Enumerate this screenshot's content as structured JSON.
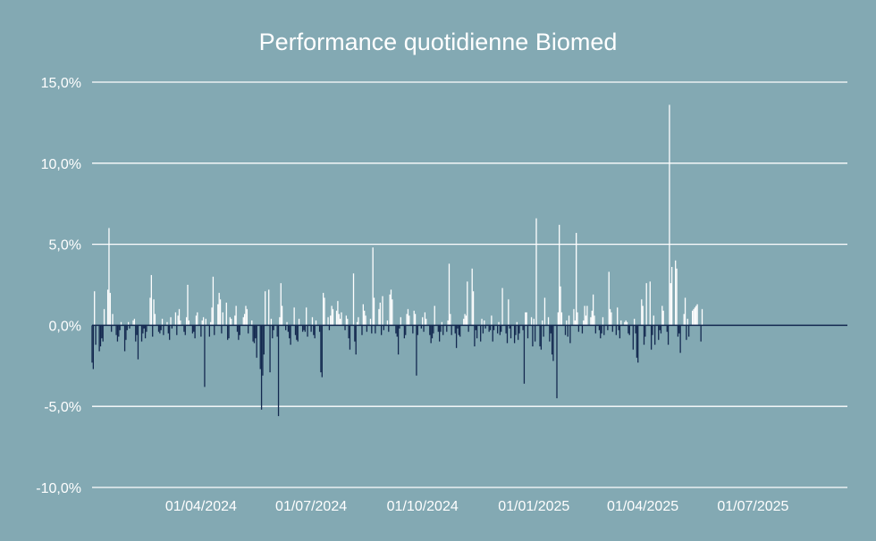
{
  "background_color": "#83a9b3",
  "colors": {
    "positive": "#ffffff",
    "negative": "#13284f",
    "grid": "#ffffff",
    "text": "#ffffff"
  },
  "chart_data": {
    "type": "bar",
    "title": "Performance quotidienne Biomed",
    "xlabel": "",
    "ylabel": "",
    "ylim": [
      -10,
      15
    ],
    "y_ticks": [
      15,
      10,
      5,
      0,
      -5,
      -10
    ],
    "y_tick_labels": [
      "15,0%",
      "10,0%",
      "5,0%",
      "0,0%",
      "-5,0%",
      "-10,0%"
    ],
    "x_range": [
      "2024-01-02",
      "2025-09-17"
    ],
    "x_ticks": [
      "2024-04-01",
      "2024-07-01",
      "2024-10-01",
      "2025-01-01",
      "2025-04-01",
      "2025-07-01"
    ],
    "x_tick_labels": [
      "01/04/2024",
      "01/07/2024",
      "01/10/2024",
      "01/01/2025",
      "01/04/2025",
      "01/07/2025"
    ],
    "grid": true,
    "legend": "none",
    "series": [
      {
        "start_date": "2024-01-02",
        "frequency": "trading days",
        "values": [
          -2.3,
          -2.7,
          2.1,
          -1.2,
          -1.6,
          -1.3,
          -0.8,
          -1.0,
          1.0,
          2.2,
          6.0,
          2.0,
          -0.4,
          0.7,
          -0.6,
          -1.0,
          -0.7,
          -0.3,
          0.2,
          -1.6,
          -0.9,
          -0.3,
          0.2,
          -0.2,
          0.3,
          0.4,
          -1.0,
          -0.6,
          -2.1,
          -1.0,
          -0.5,
          -0.2,
          -0.8,
          -0.4,
          1.7,
          3.1,
          -0.7,
          1.6,
          0.7,
          -0.4,
          -0.5,
          -0.3,
          0.4,
          -0.6,
          0.2,
          -0.5,
          -0.9,
          0.5,
          -0.2,
          0.8,
          -0.6,
          0.6,
          1.0,
          0.3,
          -0.4,
          -0.6,
          0.5,
          2.5,
          0.3,
          -0.5,
          -0.4,
          -0.8,
          0.6,
          0.8,
          -0.7,
          0.3,
          0.5,
          -3.8,
          0.4,
          -0.7,
          0.2,
          1.1,
          3.0,
          -0.6,
          1.3,
          2.0,
          1.6,
          -0.5,
          0.8,
          1.4,
          -0.9,
          -0.8,
          0.5,
          0.4,
          0.6,
          1.2,
          -0.4,
          -0.9,
          -0.6,
          0.5,
          0.7,
          1.2,
          1.0,
          -0.5,
          0.3,
          -1.0,
          -1.1,
          -0.8,
          -2.0,
          -2.7,
          -5.2,
          -3.1,
          -1.8,
          2.1,
          2.2,
          -2.9,
          0.4,
          -0.8,
          -0.3,
          -0.7,
          -5.6,
          0.5,
          2.6,
          1.2,
          -0.3,
          0.2,
          -0.4,
          -0.8,
          -1.2,
          1.1,
          -0.6,
          -0.9,
          -1.0,
          0.4,
          -0.4,
          -0.3,
          -0.4,
          1.1,
          -0.7,
          -0.4,
          0.5,
          -0.6,
          -0.8,
          0.3,
          -0.4,
          -2.9,
          -3.2,
          2.0,
          1.7,
          0.5,
          -0.3,
          0.6,
          1.2,
          1.0,
          0.9,
          1.5,
          0.7,
          0.4,
          0.8,
          -0.3,
          0.6,
          0.4,
          -0.8,
          -1.5,
          3.2,
          -1.0,
          -1.8,
          0.2,
          0.5,
          -0.6,
          1.3,
          0.9,
          0.6,
          -0.4,
          0.4,
          -0.5,
          4.8,
          1.7,
          -0.5,
          1.0,
          1.4,
          -0.6,
          1.8,
          -0.3,
          0.3,
          -0.4,
          1.9,
          2.2,
          1.6,
          -0.5,
          -0.7,
          -1.8,
          -0.2,
          0.5,
          -0.8,
          -0.6,
          0.7,
          1.0,
          0.6,
          -0.5,
          0.9,
          0.7,
          -3.1,
          -0.6,
          -0.2,
          0.5,
          -0.4,
          0.8,
          0.4,
          -0.6,
          -1.1,
          -0.8,
          -0.5,
          1.2,
          -0.4,
          -1.0,
          -0.4,
          0.2,
          -0.6,
          -0.4,
          0.3,
          3.8,
          0.7,
          -0.6,
          -0.5,
          -1.4,
          -0.2,
          -0.6,
          -0.7,
          0.4,
          0.7,
          0.6,
          2.7,
          -0.4,
          3.5,
          2.1,
          -1.3,
          -0.3,
          -0.8,
          -1.0,
          0.4,
          -0.5,
          0.3,
          -0.2,
          -0.4,
          -0.3,
          0.6,
          -1.0,
          -0.3,
          -0.5,
          0.2,
          -0.6,
          -0.4,
          2.3,
          -0.5,
          -1.1,
          1.6,
          -0.2,
          -0.8,
          -1.1,
          -0.6,
          0.2,
          -0.9,
          -0.5,
          -0.3,
          -3.6,
          0.8,
          0.8,
          -0.8,
          0.5,
          -1.3,
          0.4,
          -1.0,
          6.6,
          -1.3,
          -1.5,
          0.3,
          -0.7,
          1.7,
          0.5,
          -1.0,
          -0.5,
          -1.8,
          -2.2,
          -4.5,
          0.8,
          6.2,
          2.4,
          0.8,
          -0.6,
          0.3,
          -0.7,
          0.6,
          -1.1,
          1.0,
          0.3,
          5.7,
          0.8,
          -0.4,
          -0.5,
          0.3,
          1.2,
          0.6,
          1.2,
          0.5,
          0.9,
          1.9,
          0.6,
          -0.5,
          -0.3,
          -0.8,
          -0.5,
          0.5,
          -0.6,
          -0.3,
          3.3,
          1.0,
          0.8,
          -0.4,
          -0.6,
          1.1,
          -0.3,
          -0.8,
          0.3,
          0.2,
          0.3,
          0.2,
          -0.5,
          -0.6,
          -1.5,
          0.4,
          -0.5,
          -2.0,
          -2.3,
          1.6,
          1.2,
          -1.2,
          -0.7,
          2.6,
          2.7,
          -1.5,
          -0.6,
          0.6,
          -1.2,
          -0.9,
          -0.3,
          -0.5,
          1.2,
          0.9,
          -0.4,
          -1.2,
          13.6,
          2.6,
          3.6,
          4.0,
          3.5,
          -0.7,
          -0.5,
          -1.7,
          0.7,
          1.7,
          -0.9,
          0.4,
          -0.7,
          0.9,
          1.0,
          1.1,
          1.2,
          1.3,
          -1.0,
          1.0
        ]
      }
    ]
  }
}
